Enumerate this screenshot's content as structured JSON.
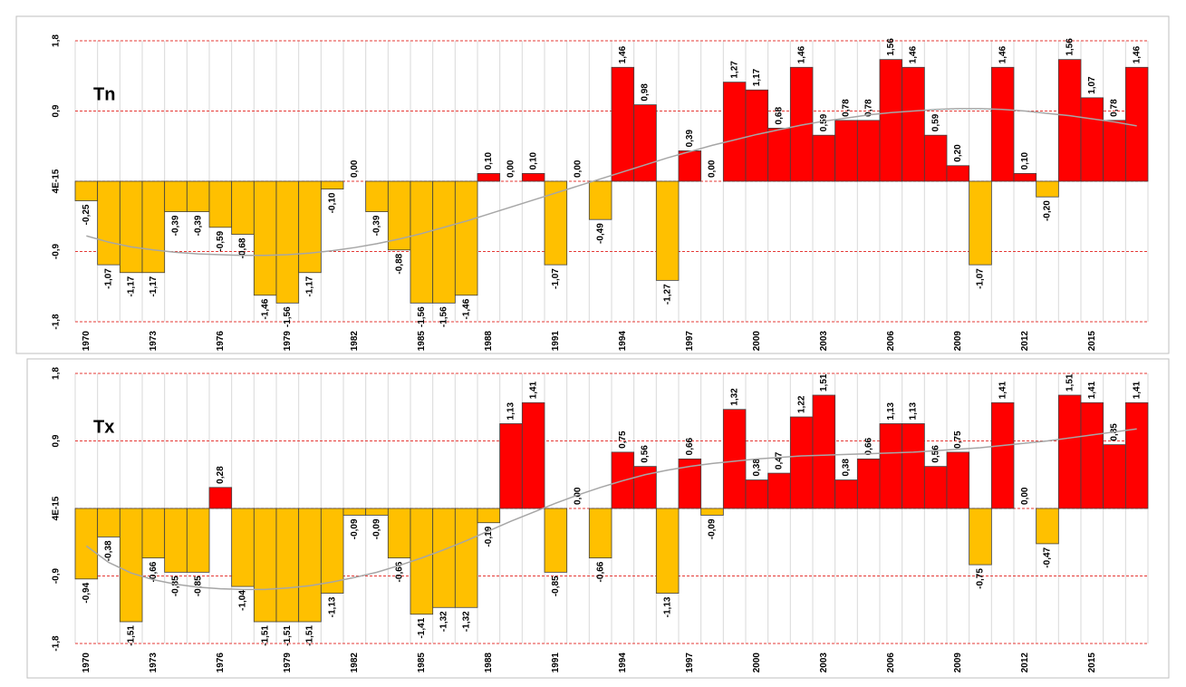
{
  "chart_data": [
    {
      "type": "bar",
      "title": "Tn",
      "categories": [
        "1970",
        null,
        null,
        "1973",
        null,
        null,
        "1976",
        null,
        null,
        "1979",
        null,
        null,
        "1982",
        null,
        null,
        "1985",
        null,
        null,
        "1988",
        null,
        null,
        "1991",
        null,
        null,
        "1994",
        null,
        null,
        "1997",
        null,
        null,
        "2000",
        null,
        null,
        "2003",
        null,
        null,
        "2006",
        null,
        null,
        "2009",
        null,
        null,
        "2012",
        null,
        null,
        "2015",
        null,
        null
      ],
      "values": [
        -0.25,
        -1.07,
        -1.17,
        -1.17,
        -0.39,
        -0.39,
        -0.59,
        -0.68,
        -1.46,
        -1.56,
        -1.17,
        -0.1,
        0.0,
        -0.39,
        -0.88,
        -1.56,
        -1.56,
        -1.46,
        0.1,
        0.0,
        0.1,
        -1.07,
        0.0,
        -0.49,
        1.46,
        0.98,
        -1.27,
        0.39,
        0.0,
        1.27,
        1.17,
        0.68,
        1.46,
        0.59,
        0.78,
        0.78,
        1.56,
        1.46,
        0.59,
        0.2,
        -1.07,
        1.46,
        0.1,
        -0.2,
        1.56,
        1.07,
        0.78,
        1.46
      ],
      "value_labels": [
        "-0,25",
        "-1,07",
        "-1,17",
        "-1,17",
        "-0,39",
        "-0,39",
        "-0,59",
        "-0,68",
        "-1,46",
        "-1,56",
        "-1,17",
        "-0,10",
        "0,00",
        "-0,39",
        "-0,88",
        "-1,56",
        "-1,56",
        "-1,46",
        "0,10",
        "0,00",
        "0,10",
        "-1,07",
        "0,00",
        "-0,49",
        "1,46",
        "0,98",
        "-1,27",
        "0,39",
        "0,00",
        "1,27",
        "1,17",
        "0,68",
        "1,46",
        "0,59",
        "0,78",
        "0,78",
        "1,56",
        "1,46",
        "0,59",
        "0,20",
        "-1,07",
        "1,46",
        "0,10",
        "-0,20",
        "1,56",
        "1,07",
        "0,78",
        "1,46"
      ],
      "trend": [
        -0.7,
        -0.78,
        -0.84,
        -0.88,
        -0.91,
        -0.93,
        -0.94,
        -0.95,
        -0.95,
        -0.94,
        -0.92,
        -0.89,
        -0.85,
        -0.8,
        -0.74,
        -0.67,
        -0.59,
        -0.51,
        -0.42,
        -0.33,
        -0.24,
        -0.15,
        -0.06,
        0.03,
        0.12,
        0.21,
        0.3,
        0.38,
        0.46,
        0.53,
        0.6,
        0.66,
        0.72,
        0.77,
        0.81,
        0.85,
        0.88,
        0.9,
        0.92,
        0.93,
        0.93,
        0.92,
        0.9,
        0.87,
        0.84,
        0.8,
        0.76,
        0.71
      ],
      "colors": {
        "positive": "#ff0000",
        "negative": "#ffc000",
        "trend": "#a6a6a6"
      },
      "ylim": [
        -1.8,
        1.8
      ],
      "yticks": [
        {
          "value": -1.8,
          "label": "-1,8"
        },
        {
          "value": -0.9,
          "label": "-0,9"
        },
        {
          "value": 4e-15,
          "label": "4E-15"
        },
        {
          "value": 0.9,
          "label": "0,9"
        },
        {
          "value": 1.8,
          "label": "1,8"
        }
      ],
      "grid": true
    },
    {
      "type": "bar",
      "title": "Tx",
      "categories": [
        "1970",
        null,
        null,
        "1973",
        null,
        null,
        "1976",
        null,
        null,
        "1979",
        null,
        null,
        "1982",
        null,
        null,
        "1985",
        null,
        null,
        "1988",
        null,
        null,
        "1991",
        null,
        null,
        "1994",
        null,
        null,
        "1997",
        null,
        null,
        "2000",
        null,
        null,
        "2003",
        null,
        null,
        "2006",
        null,
        null,
        "2009",
        null,
        null,
        "2012",
        null,
        null,
        "2015",
        null,
        null
      ],
      "values": [
        -0.94,
        -0.38,
        -1.51,
        -0.66,
        -0.85,
        -0.85,
        0.28,
        -1.04,
        -1.51,
        -1.51,
        -1.51,
        -1.13,
        -0.09,
        -0.09,
        -0.66,
        -1.41,
        -1.32,
        -1.32,
        -0.19,
        1.13,
        1.41,
        -0.85,
        0.0,
        -0.66,
        0.75,
        0.56,
        -1.13,
        0.66,
        -0.09,
        1.32,
        0.38,
        0.47,
        1.22,
        1.51,
        0.38,
        0.66,
        1.13,
        1.13,
        0.56,
        0.75,
        -0.75,
        1.41,
        0.0,
        -0.47,
        1.51,
        1.41,
        0.85,
        1.41
      ],
      "value_labels": [
        "-0,94",
        "-0,38",
        "-1,51",
        "-0,66",
        "-0,85",
        "-0,85",
        "0,28",
        "-1,04",
        "-1,51",
        "-1,51",
        "-1,51",
        "-1,13",
        "-0,09",
        "-0,09",
        "-0,66",
        "-1,41",
        "-1,32",
        "-1,32",
        "-0,19",
        "1,13",
        "1,41",
        "-0,85",
        "0,00",
        "-0,66",
        "0,75",
        "0,56",
        "-1,13",
        "0,66",
        "-0,09",
        "1,32",
        "0,38",
        "0,47",
        "1,22",
        "1,51",
        "0,38",
        "0,66",
        "1,13",
        "1,13",
        "0,56",
        "0,75",
        "-0,75",
        "1,41",
        "0,00",
        "-0,47",
        "1,51",
        "1,41",
        "0,85",
        "1,41"
      ],
      "trend": [
        -0.5,
        -0.72,
        -0.86,
        -0.95,
        -1.01,
        -1.05,
        -1.07,
        -1.08,
        -1.08,
        -1.06,
        -1.03,
        -0.98,
        -0.92,
        -0.85,
        -0.76,
        -0.66,
        -0.55,
        -0.43,
        -0.3,
        -0.17,
        -0.05,
        0.07,
        0.18,
        0.28,
        0.37,
        0.45,
        0.51,
        0.56,
        0.6,
        0.63,
        0.66,
        0.68,
        0.7,
        0.71,
        0.72,
        0.73,
        0.74,
        0.75,
        0.77,
        0.79,
        0.81,
        0.84,
        0.87,
        0.9,
        0.94,
        0.98,
        1.02,
        1.06
      ],
      "colors": {
        "positive": "#ff0000",
        "negative": "#ffc000",
        "trend": "#a6a6a6"
      },
      "ylim": [
        -1.8,
        1.8
      ],
      "yticks": [
        {
          "value": -1.8,
          "label": "-1,8"
        },
        {
          "value": -0.9,
          "label": "-0,9"
        },
        {
          "value": 4e-15,
          "label": "4E-15"
        },
        {
          "value": 0.9,
          "label": "0,9"
        },
        {
          "value": 1.8,
          "label": "1,8"
        }
      ],
      "grid": true
    }
  ]
}
